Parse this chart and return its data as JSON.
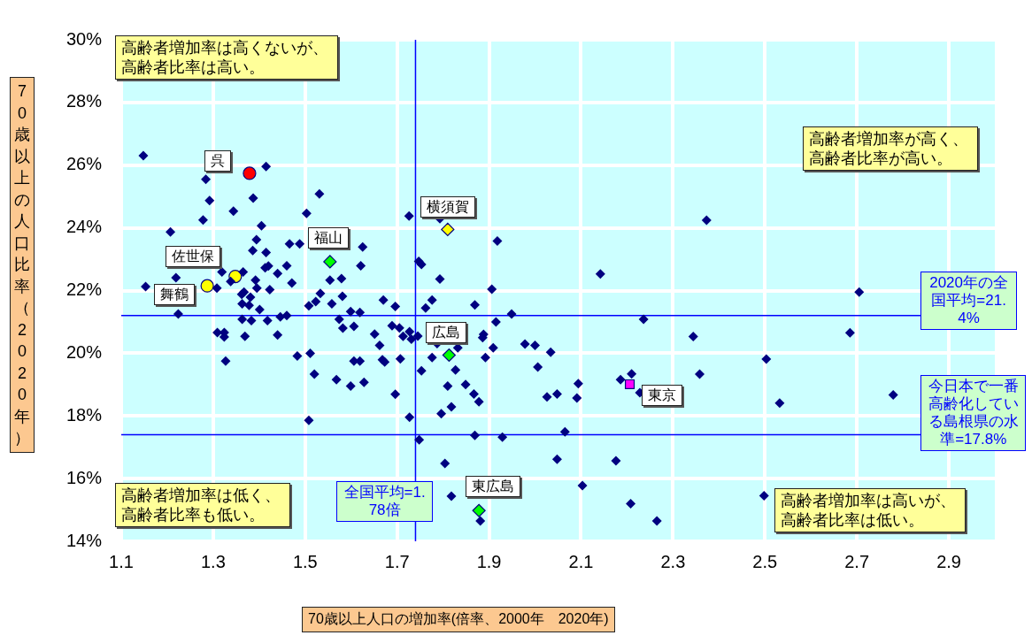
{
  "chart_data": {
    "type": "scatter",
    "xlabel": "70歳以上人口の増加率(倍率、2000年　2020年)",
    "ylabel": "70歳以上の人口比率（2020年）",
    "xlim": [
      1.1,
      3.0
    ],
    "xticks": [
      1.1,
      1.3,
      1.5,
      1.7,
      1.9,
      2.1,
      2.3,
      2.5,
      2.7,
      2.9
    ],
    "ylim": [
      14,
      30
    ],
    "yticks": [
      {
        "value": 14,
        "label": "14%"
      },
      {
        "value": 16,
        "label": "16%"
      },
      {
        "value": 18,
        "label": "18%"
      },
      {
        "value": 20,
        "label": "20%"
      },
      {
        "value": 22,
        "label": "22%"
      },
      {
        "value": 24,
        "label": "24%"
      },
      {
        "value": 26,
        "label": "26%"
      },
      {
        "value": 28,
        "label": "28%"
      },
      {
        "value": 30,
        "label": "30%"
      }
    ],
    "grid": true,
    "legend": false,
    "marker": "diamond",
    "series": [
      {
        "color": "#000080",
        "x": [
          1.148,
          1.415,
          1.284,
          1.292,
          1.387,
          1.531,
          1.344,
          1.503,
          1.278,
          1.726,
          1.405,
          1.207,
          1.394,
          1.466,
          1.488,
          1.625,
          1.386,
          1.415,
          1.46,
          1.621,
          1.413,
          1.42,
          1.319,
          1.365,
          1.44,
          1.219,
          1.392,
          1.554,
          1.579,
          1.338,
          1.471,
          1.153,
          1.308,
          1.395,
          1.423,
          1.367,
          1.362,
          1.381,
          1.533,
          1.581,
          1.67,
          1.523,
          1.558,
          1.363,
          1.378,
          1.508,
          1.696,
          1.224,
          1.401,
          1.599,
          1.619,
          1.446,
          1.46,
          1.363,
          1.383,
          1.418,
          1.574,
          1.582,
          1.606,
          1.689,
          1.705,
          1.309,
          1.324,
          1.324,
          1.369,
          1.44,
          1.651,
          1.713,
          1.727,
          1.731,
          1.662,
          1.483,
          1.511,
          1.327,
          1.606,
          1.619,
          1.668,
          1.673,
          1.707,
          1.52,
          1.568,
          1.599,
          1.628,
          1.696,
          1.508,
          1.727,
          1.793,
          1.918,
          1.747,
          1.753,
          1.793,
          2.142,
          1.906,
          1.776,
          1.762,
          1.869,
          1.949,
          2.236,
          1.915,
          1.745,
          1.787,
          1.888,
          1.886,
          1.832,
          1.909,
          1.978,
          2.0,
          2.034,
          1.776,
          1.892,
          2.006,
          1.827,
          1.753,
          1.81,
          1.849,
          1.867,
          1.878,
          1.818,
          1.796,
          2.094,
          2.026,
          2.048,
          2.091,
          2.186,
          2.21,
          2.228,
          1.869,
          1.929,
          2.065,
          1.748,
          1.804,
          2.048,
          2.176,
          2.103,
          1.818,
          2.208,
          2.265,
          1.881,
          2.373,
          2.705,
          2.344,
          2.685,
          2.503,
          2.358,
          2.779,
          2.532,
          2.498
        ],
        "values": [
          26.3,
          25.96,
          25.55,
          24.87,
          24.95,
          25.08,
          24.53,
          24.46,
          24.25,
          24.38,
          24.07,
          23.87,
          23.62,
          23.49,
          23.49,
          23.39,
          23.28,
          23.21,
          22.79,
          22.79,
          22.73,
          22.78,
          22.59,
          22.59,
          22.54,
          22.41,
          22.33,
          22.33,
          22.38,
          22.29,
          22.24,
          22.13,
          22.08,
          22.08,
          22.03,
          21.95,
          21.88,
          21.79,
          21.91,
          21.82,
          21.7,
          21.65,
          21.58,
          21.58,
          21.53,
          21.51,
          21.49,
          21.25,
          21.39,
          21.33,
          21.3,
          21.16,
          21.2,
          21.08,
          21.04,
          21.04,
          21.08,
          20.8,
          20.86,
          20.88,
          20.81,
          20.66,
          20.66,
          20.52,
          20.54,
          20.58,
          20.61,
          20.54,
          20.69,
          20.45,
          20.25,
          19.91,
          20.0,
          19.75,
          19.75,
          19.75,
          19.79,
          19.72,
          19.82,
          19.33,
          19.16,
          18.95,
          19.07,
          18.69,
          17.86,
          17.96,
          24.29,
          23.58,
          22.93,
          22.83,
          22.37,
          22.53,
          22.04,
          21.7,
          21.44,
          21.54,
          21.25,
          21.08,
          21.0,
          20.55,
          20.31,
          20.6,
          20.5,
          20.17,
          20.17,
          20.29,
          20.25,
          20.03,
          19.86,
          19.86,
          19.56,
          19.47,
          19.44,
          18.95,
          19.0,
          18.7,
          18.45,
          18.29,
          18.07,
          19.03,
          18.61,
          18.7,
          18.57,
          19.16,
          19.34,
          18.74,
          17.38,
          17.32,
          17.49,
          17.24,
          16.48,
          16.62,
          16.57,
          15.78,
          15.44,
          15.2,
          14.65,
          14.65,
          24.24,
          21.95,
          20.53,
          20.65,
          19.81,
          19.33,
          18.67,
          18.41,
          15.45
        ]
      },
      {
        "name": "呉",
        "color": "#ff0000",
        "marker": "circle",
        "x": [
          1.379
        ],
        "values": [
          25.74
        ]
      },
      {
        "name": "佐世保",
        "color": "#ffff00",
        "marker": "circle",
        "x": [
          1.348
        ],
        "values": [
          22.45
        ]
      },
      {
        "name": "舞鶴",
        "color": "#ffff00",
        "marker": "circle",
        "x": [
          1.287
        ],
        "values": [
          22.15
        ]
      },
      {
        "name": "福山",
        "color": "#00ff00",
        "marker": "diamond",
        "x": [
          1.554
        ],
        "values": [
          22.92
        ]
      },
      {
        "name": "横須賀",
        "color": "#ffff00",
        "marker": "diamond",
        "x": [
          1.81
        ],
        "values": [
          23.95
        ]
      },
      {
        "name": "広島",
        "color": "#00ff00",
        "marker": "diamond",
        "x": [
          1.813
        ],
        "values": [
          19.94
        ]
      },
      {
        "name": "東広島",
        "color": "#00ff00",
        "marker": "diamond",
        "x": [
          1.878
        ],
        "values": [
          14.98
        ]
      },
      {
        "name": "東京",
        "color": "#ff00ff",
        "marker": "square",
        "x": [
          2.206
        ],
        "values": [
          19.01
        ]
      }
    ],
    "ref_lines": [
      {
        "axis": "x",
        "value": 1.74,
        "color": "#0000ff"
      },
      {
        "axis": "y",
        "value": 21.2,
        "color": "#0000ff"
      },
      {
        "axis": "y",
        "value": 17.4,
        "color": "#0000ff"
      }
    ],
    "annotations": [
      "高齢者増加率は高くないが、高齢者比率は高い。",
      "高齢者増加率が高く、高齢者比率が高い。",
      "高齢者増加率は低く、高齢者比率も低い。",
      "高齢者増加率は高いが、高齢者比率は低い。",
      "2020年の全国平均=21.4%",
      "今日本で一番高齢化している島根県の水準=17.8%",
      "全国平均=1.78倍"
    ]
  }
}
